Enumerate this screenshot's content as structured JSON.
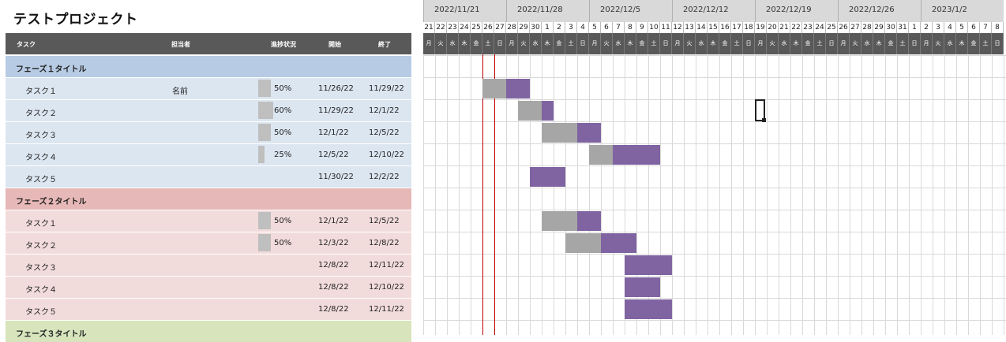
{
  "title": "テストプロジェクト",
  "columns": {
    "task": "タスク",
    "assignee": "担当者",
    "progress": "進捗状況",
    "start": "開始",
    "end": "終了"
  },
  "weeks": [
    "2022/11/21",
    "2022/11/28",
    "2022/12/5",
    "2022/12/12",
    "2022/12/19",
    "2022/12/26",
    "2023/1/2"
  ],
  "days": [
    "21",
    "22",
    "23",
    "24",
    "25",
    "26",
    "27",
    "28",
    "29",
    "30",
    "1",
    "2",
    "3",
    "4",
    "5",
    "6",
    "7",
    "8",
    "9",
    "10",
    "11",
    "12",
    "13",
    "14",
    "15",
    "16",
    "17",
    "18",
    "19",
    "20",
    "21",
    "22",
    "23",
    "24",
    "25",
    "26",
    "27",
    "28",
    "29",
    "30",
    "31",
    "1",
    "2",
    "3",
    "4",
    "5",
    "6",
    "7",
    "8"
  ],
  "weekdays": [
    "月",
    "火",
    "水",
    "木",
    "金",
    "土",
    "日"
  ],
  "colors": {
    "phase1": "#b7cbe4",
    "phase1_rows": "#dce6f1",
    "phase2": "#e6b8b7",
    "phase2_rows": "#f2dcdb",
    "phase3": "#d8e4bc",
    "done": "#a6a6a6",
    "todo": "#8064a2",
    "today": "#c00000"
  },
  "phases": [
    {
      "title": "フェーズ１タイトル",
      "tasks": [
        {
          "name": "タスク１",
          "assignee": "名前",
          "progress": "50%",
          "pct": 0.5,
          "start": "11/26/22",
          "end": "11/29/22",
          "s": 5,
          "d": 4
        },
        {
          "name": "タスク２",
          "assignee": "",
          "progress": "60%",
          "pct": 0.6,
          "start": "11/29/22",
          "end": "12/1/22",
          "s": 8,
          "d": 3
        },
        {
          "name": "タスク３",
          "assignee": "",
          "progress": "50%",
          "pct": 0.5,
          "start": "12/1/22",
          "end": "12/5/22",
          "s": 10,
          "d": 5
        },
        {
          "name": "タスク４",
          "assignee": "",
          "progress": "25%",
          "pct": 0.25,
          "start": "12/5/22",
          "end": "12/10/22",
          "s": 14,
          "d": 6
        },
        {
          "name": "タスク５",
          "assignee": "",
          "progress": "",
          "pct": 0,
          "start": "11/30/22",
          "end": "12/2/22",
          "s": 9,
          "d": 3
        }
      ]
    },
    {
      "title": "フェーズ２タイトル",
      "tasks": [
        {
          "name": "タスク１",
          "assignee": "",
          "progress": "50%",
          "pct": 0.5,
          "start": "12/1/22",
          "end": "12/5/22",
          "s": 10,
          "d": 5
        },
        {
          "name": "タスク２",
          "assignee": "",
          "progress": "50%",
          "pct": 0.5,
          "start": "12/3/22",
          "end": "12/8/22",
          "s": 12,
          "d": 6
        },
        {
          "name": "タスク３",
          "assignee": "",
          "progress": "",
          "pct": 0,
          "start": "12/8/22",
          "end": "12/11/22",
          "s": 17,
          "d": 4
        },
        {
          "name": "タスク４",
          "assignee": "",
          "progress": "",
          "pct": 0,
          "start": "12/8/22",
          "end": "12/10/22",
          "s": 17,
          "d": 3
        },
        {
          "name": "タスク５",
          "assignee": "",
          "progress": "",
          "pct": 0,
          "start": "12/8/22",
          "end": "12/11/22",
          "s": 17,
          "d": 4
        }
      ]
    },
    {
      "title": "フェーズ３タイトル",
      "tasks": []
    }
  ]
}
